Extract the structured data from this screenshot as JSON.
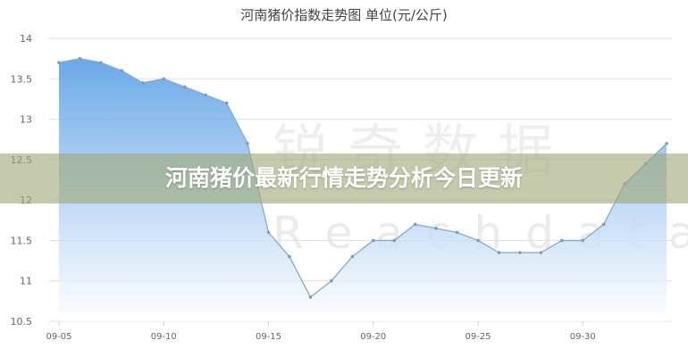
{
  "chart_data": {
    "type": "area",
    "title": "河南猪价指数走势图 单位(元/公斤)",
    "x": [
      "09-05",
      "09-06",
      "09-07",
      "09-08",
      "09-09",
      "09-10",
      "09-11",
      "09-12",
      "09-13",
      "09-14",
      "09-15",
      "09-16",
      "09-17",
      "09-18",
      "09-19",
      "09-20",
      "09-21",
      "09-22",
      "09-23",
      "09-24",
      "09-25",
      "09-26",
      "09-27",
      "09-28",
      "09-29",
      "09-30",
      "10-01",
      "10-02",
      "10-03",
      "10-04"
    ],
    "values": [
      13.7,
      13.75,
      13.7,
      13.6,
      13.45,
      13.5,
      13.4,
      13.3,
      13.2,
      12.7,
      11.6,
      11.3,
      10.8,
      11.0,
      11.3,
      11.5,
      11.5,
      11.7,
      11.65,
      11.6,
      11.5,
      11.35,
      11.35,
      11.35,
      11.5,
      11.5,
      11.7,
      12.2,
      12.45,
      12.7
    ],
    "x_tick_labels": [
      "09-05",
      "09-10",
      "09-15",
      "09-20",
      "09-25",
      "09-30"
    ],
    "y_tick_labels": [
      "10.5",
      "11",
      "11.5",
      "12",
      "12.5",
      "13",
      "13.5",
      "14"
    ],
    "ylim": [
      10.5,
      14
    ],
    "grid": true,
    "colors": {
      "line": "#8aa8c8",
      "fill_top": "#5a9fe6",
      "fill_bottom": "#ffffff"
    }
  },
  "banner": {
    "text": "河南猪价最新行情走势分析今日更新"
  },
  "watermark": {
    "cn": "锐奇数据",
    "en": "Reachdata"
  }
}
